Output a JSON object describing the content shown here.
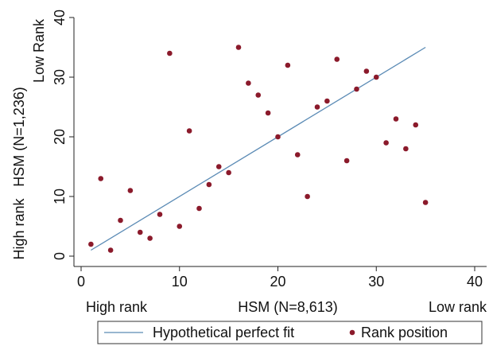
{
  "chart_data": {
    "type": "scatter",
    "xlim": [
      0,
      40
    ],
    "ylim": [
      0,
      40
    ],
    "xticks": [
      0,
      10,
      20,
      30,
      40
    ],
    "yticks": [
      0,
      10,
      20,
      30,
      40
    ],
    "grid": false,
    "xlabel": {
      "left": "High rank",
      "center": "HSM (N=8,613)",
      "right": "Low rank"
    },
    "ylabel": {
      "bottom": "High rank",
      "center": "HSM (N=1,236)",
      "top": "Low Rank"
    },
    "legend_position": "bottom",
    "series": [
      {
        "name": "Hypothetical perfect fit",
        "kind": "line",
        "color": "#5b8bb5",
        "points": [
          [
            1,
            1
          ],
          [
            35,
            35
          ]
        ]
      },
      {
        "name": "Rank position",
        "kind": "scatter",
        "color": "#8b1a2b",
        "points": [
          [
            1,
            2
          ],
          [
            2,
            13
          ],
          [
            3,
            1
          ],
          [
            4,
            6
          ],
          [
            5,
            11
          ],
          [
            6,
            4
          ],
          [
            7,
            3
          ],
          [
            8,
            7
          ],
          [
            9,
            34
          ],
          [
            10,
            5
          ],
          [
            11,
            21
          ],
          [
            12,
            8
          ],
          [
            13,
            12
          ],
          [
            14,
            15
          ],
          [
            15,
            14
          ],
          [
            16,
            35
          ],
          [
            17,
            29
          ],
          [
            18,
            27
          ],
          [
            19,
            24
          ],
          [
            20,
            20
          ],
          [
            21,
            32
          ],
          [
            22,
            17
          ],
          [
            23,
            10
          ],
          [
            24,
            25
          ],
          [
            25,
            26
          ],
          [
            26,
            33
          ],
          [
            27,
            16
          ],
          [
            28,
            28
          ],
          [
            29,
            31
          ],
          [
            30,
            30
          ],
          [
            31,
            19
          ],
          [
            32,
            23
          ],
          [
            33,
            18
          ],
          [
            34,
            22
          ],
          [
            35,
            9
          ]
        ]
      }
    ]
  }
}
